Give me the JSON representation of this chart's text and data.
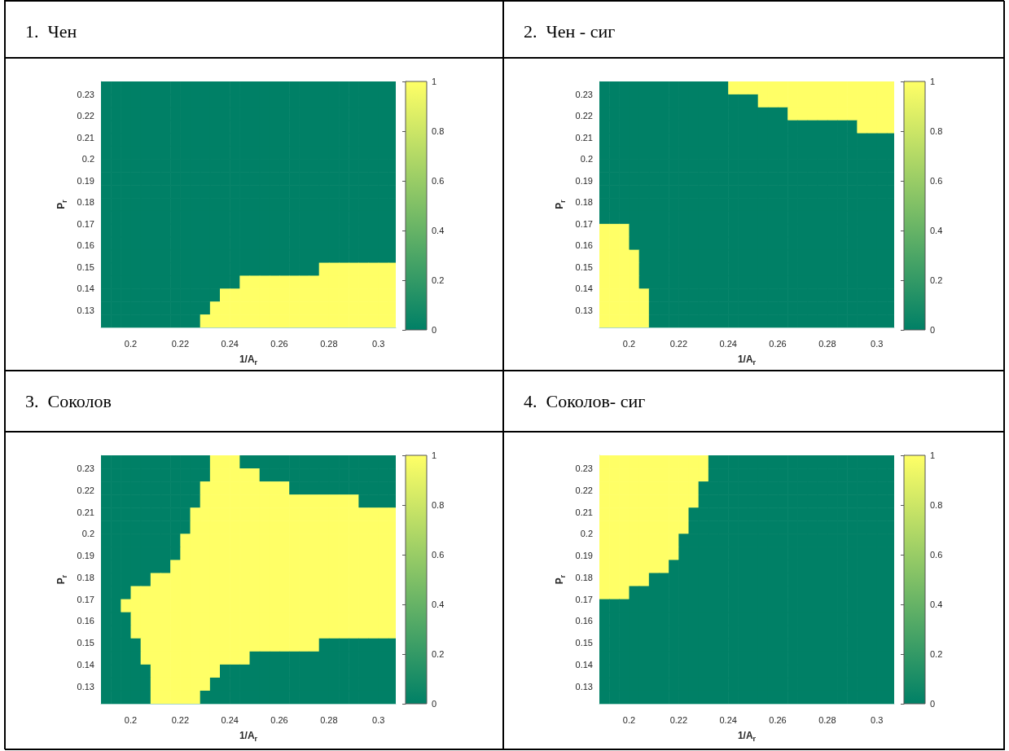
{
  "chart_data": [
    {
      "type": "heatmap",
      "title": "1.  Чен",
      "xlabel": "1/A$_{r}$",
      "ylabel": "P$_{r}$",
      "x": [
        0.19,
        0.194,
        0.198,
        0.202,
        0.206,
        0.21,
        0.214,
        0.218,
        0.222,
        0.226,
        0.23,
        0.234,
        0.238,
        0.242,
        0.246,
        0.25,
        0.254,
        0.258,
        0.262,
        0.266,
        0.27,
        0.274,
        0.278,
        0.282,
        0.286,
        0.29,
        0.294,
        0.298,
        0.302,
        0.306
      ],
      "y": [
        0.233,
        0.227,
        0.221,
        0.215,
        0.209,
        0.203,
        0.197,
        0.191,
        0.185,
        0.179,
        0.173,
        0.167,
        0.161,
        0.155,
        0.149,
        0.143,
        0.137,
        0.131,
        0.125
      ],
      "xlim": [
        0.188,
        0.307
      ],
      "ylim": [
        0.122,
        0.236
      ],
      "xticks": [
        0.2,
        0.22,
        0.24,
        0.26,
        0.28,
        0.3
      ],
      "yticks": [
        0.13,
        0.14,
        0.15,
        0.16,
        0.17,
        0.18,
        0.19,
        0.2,
        0.21,
        0.22,
        0.23
      ],
      "clim": [
        0,
        1
      ],
      "cticks": [
        0,
        0.2,
        0.4,
        0.6,
        0.8,
        1
      ],
      "cells": [
        [
          0,
          0,
          0,
          0,
          0,
          0,
          0,
          0,
          0,
          0,
          0,
          0,
          0,
          0,
          0,
          0,
          0,
          0,
          0,
          0,
          0,
          0,
          0,
          0,
          0,
          0,
          0,
          0,
          0,
          0
        ],
        [
          0,
          0,
          0,
          0,
          0,
          0,
          0,
          0,
          0,
          0,
          0,
          0,
          0,
          0,
          0,
          0,
          0,
          0,
          0,
          0,
          0,
          0,
          0,
          0,
          0,
          0,
          0,
          0,
          0,
          0
        ],
        [
          0,
          0,
          0,
          0,
          0,
          0,
          0,
          0,
          0,
          0,
          0,
          0,
          0,
          0,
          0,
          0,
          0,
          0,
          0,
          0,
          0,
          0,
          0,
          0,
          0,
          0,
          0,
          0,
          0,
          0
        ],
        [
          0,
          0,
          0,
          0,
          0,
          0,
          0,
          0,
          0,
          0,
          0,
          0,
          0,
          0,
          0,
          0,
          0,
          0,
          0,
          0,
          0,
          0,
          0,
          0,
          0,
          0,
          0,
          0,
          0,
          0
        ],
        [
          0,
          0,
          0,
          0,
          0,
          0,
          0,
          0,
          0,
          0,
          0,
          0,
          0,
          0,
          0,
          0,
          0,
          0,
          0,
          0,
          0,
          0,
          0,
          0,
          0,
          0,
          0,
          0,
          0,
          0
        ],
        [
          0,
          0,
          0,
          0,
          0,
          0,
          0,
          0,
          0,
          0,
          0,
          0,
          0,
          0,
          0,
          0,
          0,
          0,
          0,
          0,
          0,
          0,
          0,
          0,
          0,
          0,
          0,
          0,
          0,
          0
        ],
        [
          0,
          0,
          0,
          0,
          0,
          0,
          0,
          0,
          0,
          0,
          0,
          0,
          0,
          0,
          0,
          0,
          0,
          0,
          0,
          0,
          0,
          0,
          0,
          0,
          0,
          0,
          0,
          0,
          0,
          0
        ],
        [
          0,
          0,
          0,
          0,
          0,
          0,
          0,
          0,
          0,
          0,
          0,
          0,
          0,
          0,
          0,
          0,
          0,
          0,
          0,
          0,
          0,
          0,
          0,
          0,
          0,
          0,
          0,
          0,
          0,
          0
        ],
        [
          0,
          0,
          0,
          0,
          0,
          0,
          0,
          0,
          0,
          0,
          0,
          0,
          0,
          0,
          0,
          0,
          0,
          0,
          0,
          0,
          0,
          0,
          0,
          0,
          0,
          0,
          0,
          0,
          0,
          0
        ],
        [
          0,
          0,
          0,
          0,
          0,
          0,
          0,
          0,
          0,
          0,
          0,
          0,
          0,
          0,
          0,
          0,
          0,
          0,
          0,
          0,
          0,
          0,
          0,
          0,
          0,
          0,
          0,
          0,
          0,
          0
        ],
        [
          0,
          0,
          0,
          0,
          0,
          0,
          0,
          0,
          0,
          0,
          0,
          0,
          0,
          0,
          0,
          0,
          0,
          0,
          0,
          0,
          0,
          0,
          0,
          0,
          0,
          0,
          0,
          0,
          0,
          0
        ],
        [
          0,
          0,
          0,
          0,
          0,
          0,
          0,
          0,
          0,
          0,
          0,
          0,
          0,
          0,
          0,
          0,
          0,
          0,
          0,
          0,
          0,
          0,
          0,
          0,
          0,
          0,
          0,
          0,
          0,
          0
        ],
        [
          0,
          0,
          0,
          0,
          0,
          0,
          0,
          0,
          0,
          0,
          0,
          0,
          0,
          0,
          0,
          0,
          0,
          0,
          0,
          0,
          0,
          0,
          0,
          0,
          0,
          0,
          0,
          0,
          0,
          0
        ],
        [
          0,
          0,
          0,
          0,
          0,
          0,
          0,
          0,
          0,
          0,
          0,
          0,
          0,
          0,
          0,
          0,
          0,
          0,
          0,
          0,
          0,
          0,
          0,
          0,
          0,
          0,
          0,
          0,
          0,
          0
        ],
        [
          0,
          0,
          0,
          0,
          0,
          0,
          0,
          0,
          0,
          0,
          0,
          0,
          0,
          0,
          0,
          0,
          0,
          0,
          0,
          0,
          0,
          0,
          1,
          1,
          1,
          1,
          1,
          1,
          1,
          1
        ],
        [
          0,
          0,
          0,
          0,
          0,
          0,
          0,
          0,
          0,
          0,
          0,
          0,
          0,
          0,
          1,
          1,
          1,
          1,
          1,
          1,
          1,
          1,
          1,
          1,
          1,
          1,
          1,
          1,
          1,
          1
        ],
        [
          0,
          0,
          0,
          0,
          0,
          0,
          0,
          0,
          0,
          0,
          0,
          0,
          1,
          1,
          1,
          1,
          1,
          1,
          1,
          1,
          1,
          1,
          1,
          1,
          1,
          1,
          1,
          1,
          1,
          1
        ],
        [
          0,
          0,
          0,
          0,
          0,
          0,
          0,
          0,
          0,
          0,
          0,
          1,
          1,
          1,
          1,
          1,
          1,
          1,
          1,
          1,
          1,
          1,
          1,
          1,
          1,
          1,
          1,
          1,
          1,
          1
        ],
        [
          0,
          0,
          0,
          0,
          0,
          0,
          0,
          0,
          0,
          0,
          1,
          1,
          1,
          1,
          1,
          1,
          1,
          1,
          1,
          1,
          1,
          1,
          1,
          1,
          1,
          1,
          1,
          1,
          1,
          1
        ]
      ]
    },
    {
      "type": "heatmap",
      "title": "2.  Чен - сиг",
      "xlabel": "1/A$_{r}$",
      "ylabel": "P$_{r}$",
      "x": [
        0.19,
        0.194,
        0.198,
        0.202,
        0.206,
        0.21,
        0.214,
        0.218,
        0.222,
        0.226,
        0.23,
        0.234,
        0.238,
        0.242,
        0.246,
        0.25,
        0.254,
        0.258,
        0.262,
        0.266,
        0.27,
        0.274,
        0.278,
        0.282,
        0.286,
        0.29,
        0.294,
        0.298,
        0.302,
        0.306
      ],
      "y": [
        0.233,
        0.227,
        0.221,
        0.215,
        0.209,
        0.203,
        0.197,
        0.191,
        0.185,
        0.179,
        0.173,
        0.167,
        0.161,
        0.155,
        0.149,
        0.143,
        0.137,
        0.131,
        0.125
      ],
      "xlim": [
        0.188,
        0.307
      ],
      "ylim": [
        0.122,
        0.236
      ],
      "xticks": [
        0.2,
        0.22,
        0.24,
        0.26,
        0.28,
        0.3
      ],
      "yticks": [
        0.13,
        0.14,
        0.15,
        0.16,
        0.17,
        0.18,
        0.19,
        0.2,
        0.21,
        0.22,
        0.23
      ],
      "clim": [
        0,
        1
      ],
      "cticks": [
        0,
        0.2,
        0.4,
        0.6,
        0.8,
        1
      ],
      "cells": [
        [
          0,
          0,
          0,
          0,
          0,
          0,
          0,
          0,
          0,
          0,
          0,
          0,
          0,
          1,
          1,
          1,
          1,
          1,
          1,
          1,
          1,
          1,
          1,
          1,
          1,
          1,
          1,
          1,
          1,
          1
        ],
        [
          0,
          0,
          0,
          0,
          0,
          0,
          0,
          0,
          0,
          0,
          0,
          0,
          0,
          0,
          0,
          0,
          1,
          1,
          1,
          1,
          1,
          1,
          1,
          1,
          1,
          1,
          1,
          1,
          1,
          1
        ],
        [
          0,
          0,
          0,
          0,
          0,
          0,
          0,
          0,
          0,
          0,
          0,
          0,
          0,
          0,
          0,
          0,
          0,
          0,
          0,
          1,
          1,
          1,
          1,
          1,
          1,
          1,
          1,
          1,
          1,
          1
        ],
        [
          0,
          0,
          0,
          0,
          0,
          0,
          0,
          0,
          0,
          0,
          0,
          0,
          0,
          0,
          0,
          0,
          0,
          0,
          0,
          0,
          0,
          0,
          0,
          0,
          0,
          0,
          1,
          1,
          1,
          1
        ],
        [
          0,
          0,
          0,
          0,
          0,
          0,
          0,
          0,
          0,
          0,
          0,
          0,
          0,
          0,
          0,
          0,
          0,
          0,
          0,
          0,
          0,
          0,
          0,
          0,
          0,
          0,
          0,
          0,
          0,
          0
        ],
        [
          0,
          0,
          0,
          0,
          0,
          0,
          0,
          0,
          0,
          0,
          0,
          0,
          0,
          0,
          0,
          0,
          0,
          0,
          0,
          0,
          0,
          0,
          0,
          0,
          0,
          0,
          0,
          0,
          0,
          0
        ],
        [
          0,
          0,
          0,
          0,
          0,
          0,
          0,
          0,
          0,
          0,
          0,
          0,
          0,
          0,
          0,
          0,
          0,
          0,
          0,
          0,
          0,
          0,
          0,
          0,
          0,
          0,
          0,
          0,
          0,
          0
        ],
        [
          0,
          0,
          0,
          0,
          0,
          0,
          0,
          0,
          0,
          0,
          0,
          0,
          0,
          0,
          0,
          0,
          0,
          0,
          0,
          0,
          0,
          0,
          0,
          0,
          0,
          0,
          0,
          0,
          0,
          0
        ],
        [
          0,
          0,
          0,
          0,
          0,
          0,
          0,
          0,
          0,
          0,
          0,
          0,
          0,
          0,
          0,
          0,
          0,
          0,
          0,
          0,
          0,
          0,
          0,
          0,
          0,
          0,
          0,
          0,
          0,
          0
        ],
        [
          0,
          0,
          0,
          0,
          0,
          0,
          0,
          0,
          0,
          0,
          0,
          0,
          0,
          0,
          0,
          0,
          0,
          0,
          0,
          0,
          0,
          0,
          0,
          0,
          0,
          0,
          0,
          0,
          0,
          0
        ],
        [
          0,
          0,
          0,
          0,
          0,
          0,
          0,
          0,
          0,
          0,
          0,
          0,
          0,
          0,
          0,
          0,
          0,
          0,
          0,
          0,
          0,
          0,
          0,
          0,
          0,
          0,
          0,
          0,
          0,
          0
        ],
        [
          1,
          1,
          1,
          0,
          0,
          0,
          0,
          0,
          0,
          0,
          0,
          0,
          0,
          0,
          0,
          0,
          0,
          0,
          0,
          0,
          0,
          0,
          0,
          0,
          0,
          0,
          0,
          0,
          0,
          0
        ],
        [
          1,
          1,
          1,
          0,
          0,
          0,
          0,
          0,
          0,
          0,
          0,
          0,
          0,
          0,
          0,
          0,
          0,
          0,
          0,
          0,
          0,
          0,
          0,
          0,
          0,
          0,
          0,
          0,
          0,
          0
        ],
        [
          1,
          1,
          1,
          1,
          0,
          0,
          0,
          0,
          0,
          0,
          0,
          0,
          0,
          0,
          0,
          0,
          0,
          0,
          0,
          0,
          0,
          0,
          0,
          0,
          0,
          0,
          0,
          0,
          0,
          0
        ],
        [
          1,
          1,
          1,
          1,
          0,
          0,
          0,
          0,
          0,
          0,
          0,
          0,
          0,
          0,
          0,
          0,
          0,
          0,
          0,
          0,
          0,
          0,
          0,
          0,
          0,
          0,
          0,
          0,
          0,
          0
        ],
        [
          1,
          1,
          1,
          1,
          0,
          0,
          0,
          0,
          0,
          0,
          0,
          0,
          0,
          0,
          0,
          0,
          0,
          0,
          0,
          0,
          0,
          0,
          0,
          0,
          0,
          0,
          0,
          0,
          0,
          0
        ],
        [
          1,
          1,
          1,
          1,
          1,
          0,
          0,
          0,
          0,
          0,
          0,
          0,
          0,
          0,
          0,
          0,
          0,
          0,
          0,
          0,
          0,
          0,
          0,
          0,
          0,
          0,
          0,
          0,
          0,
          0
        ],
        [
          1,
          1,
          1,
          1,
          1,
          0,
          0,
          0,
          0,
          0,
          0,
          0,
          0,
          0,
          0,
          0,
          0,
          0,
          0,
          0,
          0,
          0,
          0,
          0,
          0,
          0,
          0,
          0,
          0,
          0
        ],
        [
          1,
          1,
          1,
          1,
          1,
          0,
          0,
          0,
          0,
          0,
          0,
          0,
          0,
          0,
          0,
          0,
          0,
          0,
          0,
          0,
          0,
          0,
          0,
          0,
          0,
          0,
          0,
          0,
          0,
          0
        ]
      ]
    },
    {
      "type": "heatmap",
      "title": "3.  Соколов",
      "xlabel": "1/A$_{r}$",
      "ylabel": "P$_{r}$",
      "x": [
        0.19,
        0.194,
        0.198,
        0.202,
        0.206,
        0.21,
        0.214,
        0.218,
        0.222,
        0.226,
        0.23,
        0.234,
        0.238,
        0.242,
        0.246,
        0.25,
        0.254,
        0.258,
        0.262,
        0.266,
        0.27,
        0.274,
        0.278,
        0.282,
        0.286,
        0.29,
        0.294,
        0.298,
        0.302,
        0.306
      ],
      "y": [
        0.233,
        0.227,
        0.221,
        0.215,
        0.209,
        0.203,
        0.197,
        0.191,
        0.185,
        0.179,
        0.173,
        0.167,
        0.161,
        0.155,
        0.149,
        0.143,
        0.137,
        0.131,
        0.125
      ],
      "xlim": [
        0.188,
        0.307
      ],
      "ylim": [
        0.122,
        0.236
      ],
      "xticks": [
        0.2,
        0.22,
        0.24,
        0.26,
        0.28,
        0.3
      ],
      "yticks": [
        0.13,
        0.14,
        0.15,
        0.16,
        0.17,
        0.18,
        0.19,
        0.2,
        0.21,
        0.22,
        0.23
      ],
      "clim": [
        0,
        1
      ],
      "cticks": [
        0,
        0.2,
        0.4,
        0.6,
        0.8,
        1
      ],
      "cells": [
        [
          0,
          0,
          0,
          0,
          0,
          0,
          0,
          0,
          0,
          0,
          0,
          1,
          1,
          1,
          0,
          0,
          0,
          0,
          0,
          0,
          0,
          0,
          0,
          0,
          0,
          0,
          0,
          0,
          0,
          0
        ],
        [
          0,
          0,
          0,
          0,
          0,
          0,
          0,
          0,
          0,
          0,
          0,
          1,
          1,
          1,
          1,
          1,
          0,
          0,
          0,
          0,
          0,
          0,
          0,
          0,
          0,
          0,
          0,
          0,
          0,
          0
        ],
        [
          0,
          0,
          0,
          0,
          0,
          0,
          0,
          0,
          0,
          0,
          1,
          1,
          1,
          1,
          1,
          1,
          1,
          1,
          1,
          0,
          0,
          0,
          0,
          0,
          0,
          0,
          0,
          0,
          0,
          0
        ],
        [
          0,
          0,
          0,
          0,
          0,
          0,
          0,
          0,
          0,
          0,
          1,
          1,
          1,
          1,
          1,
          1,
          1,
          1,
          1,
          1,
          1,
          1,
          1,
          1,
          1,
          1,
          0,
          0,
          0,
          0
        ],
        [
          0,
          0,
          0,
          0,
          0,
          0,
          0,
          0,
          0,
          1,
          1,
          1,
          1,
          1,
          1,
          1,
          1,
          1,
          1,
          1,
          1,
          1,
          1,
          1,
          1,
          1,
          1,
          1,
          1,
          1
        ],
        [
          0,
          0,
          0,
          0,
          0,
          0,
          0,
          0,
          0,
          1,
          1,
          1,
          1,
          1,
          1,
          1,
          1,
          1,
          1,
          1,
          1,
          1,
          1,
          1,
          1,
          1,
          1,
          1,
          1,
          1
        ],
        [
          0,
          0,
          0,
          0,
          0,
          0,
          0,
          0,
          1,
          1,
          1,
          1,
          1,
          1,
          1,
          1,
          1,
          1,
          1,
          1,
          1,
          1,
          1,
          1,
          1,
          1,
          1,
          1,
          1,
          1
        ],
        [
          0,
          0,
          0,
          0,
          0,
          0,
          0,
          0,
          1,
          1,
          1,
          1,
          1,
          1,
          1,
          1,
          1,
          1,
          1,
          1,
          1,
          1,
          1,
          1,
          1,
          1,
          1,
          1,
          1,
          1
        ],
        [
          0,
          0,
          0,
          0,
          0,
          0,
          0,
          1,
          1,
          1,
          1,
          1,
          1,
          1,
          1,
          1,
          1,
          1,
          1,
          1,
          1,
          1,
          1,
          1,
          1,
          1,
          1,
          1,
          1,
          1
        ],
        [
          0,
          0,
          0,
          0,
          0,
          1,
          1,
          1,
          1,
          1,
          1,
          1,
          1,
          1,
          1,
          1,
          1,
          1,
          1,
          1,
          1,
          1,
          1,
          1,
          1,
          1,
          1,
          1,
          1,
          1
        ],
        [
          0,
          0,
          0,
          1,
          1,
          1,
          1,
          1,
          1,
          1,
          1,
          1,
          1,
          1,
          1,
          1,
          1,
          1,
          1,
          1,
          1,
          1,
          1,
          1,
          1,
          1,
          1,
          1,
          1,
          1
        ],
        [
          0,
          0,
          1,
          1,
          1,
          1,
          1,
          1,
          1,
          1,
          1,
          1,
          1,
          1,
          1,
          1,
          1,
          1,
          1,
          1,
          1,
          1,
          1,
          1,
          1,
          1,
          1,
          1,
          1,
          1
        ],
        [
          0,
          0,
          0,
          1,
          1,
          1,
          1,
          1,
          1,
          1,
          1,
          1,
          1,
          1,
          1,
          1,
          1,
          1,
          1,
          1,
          1,
          1,
          1,
          1,
          1,
          1,
          1,
          1,
          1,
          1
        ],
        [
          0,
          0,
          0,
          1,
          1,
          1,
          1,
          1,
          1,
          1,
          1,
          1,
          1,
          1,
          1,
          1,
          1,
          1,
          1,
          1,
          1,
          1,
          1,
          1,
          1,
          1,
          1,
          1,
          1,
          1
        ],
        [
          0,
          0,
          0,
          0,
          1,
          1,
          1,
          1,
          1,
          1,
          1,
          1,
          1,
          1,
          1,
          1,
          1,
          1,
          1,
          1,
          1,
          1,
          0,
          0,
          0,
          0,
          0,
          0,
          0,
          0
        ],
        [
          0,
          0,
          0,
          0,
          1,
          1,
          1,
          1,
          1,
          1,
          1,
          1,
          1,
          1,
          1,
          0,
          0,
          0,
          0,
          0,
          0,
          0,
          0,
          0,
          0,
          0,
          0,
          0,
          0,
          0
        ],
        [
          0,
          0,
          0,
          0,
          0,
          1,
          1,
          1,
          1,
          1,
          1,
          1,
          0,
          0,
          0,
          0,
          0,
          0,
          0,
          0,
          0,
          0,
          0,
          0,
          0,
          0,
          0,
          0,
          0,
          0
        ],
        [
          0,
          0,
          0,
          0,
          0,
          1,
          1,
          1,
          1,
          1,
          1,
          0,
          0,
          0,
          0,
          0,
          0,
          0,
          0,
          0,
          0,
          0,
          0,
          0,
          0,
          0,
          0,
          0,
          0,
          0
        ],
        [
          0,
          0,
          0,
          0,
          0,
          1,
          1,
          1,
          1,
          1,
          0,
          0,
          0,
          0,
          0,
          0,
          0,
          0,
          0,
          0,
          0,
          0,
          0,
          0,
          0,
          0,
          0,
          0,
          0,
          0
        ]
      ]
    },
    {
      "type": "heatmap",
      "title": "4.  Соколов- сиг",
      "xlabel": "1/A$_{r}$",
      "ylabel": "P$_{r}$",
      "x": [
        0.19,
        0.194,
        0.198,
        0.202,
        0.206,
        0.21,
        0.214,
        0.218,
        0.222,
        0.226,
        0.23,
        0.234,
        0.238,
        0.242,
        0.246,
        0.25,
        0.254,
        0.258,
        0.262,
        0.266,
        0.27,
        0.274,
        0.278,
        0.282,
        0.286,
        0.29,
        0.294,
        0.298,
        0.302,
        0.306
      ],
      "y": [
        0.233,
        0.227,
        0.221,
        0.215,
        0.209,
        0.203,
        0.197,
        0.191,
        0.185,
        0.179,
        0.173,
        0.167,
        0.161,
        0.155,
        0.149,
        0.143,
        0.137,
        0.131,
        0.125
      ],
      "xlim": [
        0.188,
        0.307
      ],
      "ylim": [
        0.122,
        0.236
      ],
      "xticks": [
        0.2,
        0.22,
        0.24,
        0.26,
        0.28,
        0.3
      ],
      "yticks": [
        0.13,
        0.14,
        0.15,
        0.16,
        0.17,
        0.18,
        0.19,
        0.2,
        0.21,
        0.22,
        0.23
      ],
      "clim": [
        0,
        1
      ],
      "cticks": [
        0,
        0.2,
        0.4,
        0.6,
        0.8,
        1
      ],
      "cells": [
        [
          1,
          1,
          1,
          1,
          1,
          1,
          1,
          1,
          1,
          1,
          1,
          0,
          0,
          0,
          0,
          0,
          0,
          0,
          0,
          0,
          0,
          0,
          0,
          0,
          0,
          0,
          0,
          0,
          0,
          0
        ],
        [
          1,
          1,
          1,
          1,
          1,
          1,
          1,
          1,
          1,
          1,
          1,
          0,
          0,
          0,
          0,
          0,
          0,
          0,
          0,
          0,
          0,
          0,
          0,
          0,
          0,
          0,
          0,
          0,
          0,
          0
        ],
        [
          1,
          1,
          1,
          1,
          1,
          1,
          1,
          1,
          1,
          1,
          0,
          0,
          0,
          0,
          0,
          0,
          0,
          0,
          0,
          0,
          0,
          0,
          0,
          0,
          0,
          0,
          0,
          0,
          0,
          0
        ],
        [
          1,
          1,
          1,
          1,
          1,
          1,
          1,
          1,
          1,
          1,
          0,
          0,
          0,
          0,
          0,
          0,
          0,
          0,
          0,
          0,
          0,
          0,
          0,
          0,
          0,
          0,
          0,
          0,
          0,
          0
        ],
        [
          1,
          1,
          1,
          1,
          1,
          1,
          1,
          1,
          1,
          0,
          0,
          0,
          0,
          0,
          0,
          0,
          0,
          0,
          0,
          0,
          0,
          0,
          0,
          0,
          0,
          0,
          0,
          0,
          0,
          0
        ],
        [
          1,
          1,
          1,
          1,
          1,
          1,
          1,
          1,
          1,
          0,
          0,
          0,
          0,
          0,
          0,
          0,
          0,
          0,
          0,
          0,
          0,
          0,
          0,
          0,
          0,
          0,
          0,
          0,
          0,
          0
        ],
        [
          1,
          1,
          1,
          1,
          1,
          1,
          1,
          1,
          0,
          0,
          0,
          0,
          0,
          0,
          0,
          0,
          0,
          0,
          0,
          0,
          0,
          0,
          0,
          0,
          0,
          0,
          0,
          0,
          0,
          0
        ],
        [
          1,
          1,
          1,
          1,
          1,
          1,
          1,
          1,
          0,
          0,
          0,
          0,
          0,
          0,
          0,
          0,
          0,
          0,
          0,
          0,
          0,
          0,
          0,
          0,
          0,
          0,
          0,
          0,
          0,
          0
        ],
        [
          1,
          1,
          1,
          1,
          1,
          1,
          1,
          0,
          0,
          0,
          0,
          0,
          0,
          0,
          0,
          0,
          0,
          0,
          0,
          0,
          0,
          0,
          0,
          0,
          0,
          0,
          0,
          0,
          0,
          0
        ],
        [
          1,
          1,
          1,
          1,
          1,
          0,
          0,
          0,
          0,
          0,
          0,
          0,
          0,
          0,
          0,
          0,
          0,
          0,
          0,
          0,
          0,
          0,
          0,
          0,
          0,
          0,
          0,
          0,
          0,
          0
        ],
        [
          1,
          1,
          1,
          0,
          0,
          0,
          0,
          0,
          0,
          0,
          0,
          0,
          0,
          0,
          0,
          0,
          0,
          0,
          0,
          0,
          0,
          0,
          0,
          0,
          0,
          0,
          0,
          0,
          0,
          0
        ],
        [
          0,
          0,
          0,
          0,
          0,
          0,
          0,
          0,
          0,
          0,
          0,
          0,
          0,
          0,
          0,
          0,
          0,
          0,
          0,
          0,
          0,
          0,
          0,
          0,
          0,
          0,
          0,
          0,
          0,
          0
        ],
        [
          0,
          0,
          0,
          0,
          0,
          0,
          0,
          0,
          0,
          0,
          0,
          0,
          0,
          0,
          0,
          0,
          0,
          0,
          0,
          0,
          0,
          0,
          0,
          0,
          0,
          0,
          0,
          0,
          0,
          0
        ],
        [
          0,
          0,
          0,
          0,
          0,
          0,
          0,
          0,
          0,
          0,
          0,
          0,
          0,
          0,
          0,
          0,
          0,
          0,
          0,
          0,
          0,
          0,
          0,
          0,
          0,
          0,
          0,
          0,
          0,
          0
        ],
        [
          0,
          0,
          0,
          0,
          0,
          0,
          0,
          0,
          0,
          0,
          0,
          0,
          0,
          0,
          0,
          0,
          0,
          0,
          0,
          0,
          0,
          0,
          0,
          0,
          0,
          0,
          0,
          0,
          0,
          0
        ],
        [
          0,
          0,
          0,
          0,
          0,
          0,
          0,
          0,
          0,
          0,
          0,
          0,
          0,
          0,
          0,
          0,
          0,
          0,
          0,
          0,
          0,
          0,
          0,
          0,
          0,
          0,
          0,
          0,
          0,
          0
        ],
        [
          0,
          0,
          0,
          0,
          0,
          0,
          0,
          0,
          0,
          0,
          0,
          0,
          0,
          0,
          0,
          0,
          0,
          0,
          0,
          0,
          0,
          0,
          0,
          0,
          0,
          0,
          0,
          0,
          0,
          0
        ],
        [
          0,
          0,
          0,
          0,
          0,
          0,
          0,
          0,
          0,
          0,
          0,
          0,
          0,
          0,
          0,
          0,
          0,
          0,
          0,
          0,
          0,
          0,
          0,
          0,
          0,
          0,
          0,
          0,
          0,
          0
        ],
        [
          0,
          0,
          0,
          0,
          0,
          0,
          0,
          0,
          0,
          0,
          0,
          0,
          0,
          0,
          0,
          0,
          0,
          0,
          0,
          0,
          0,
          0,
          0,
          0,
          0,
          0,
          0,
          0,
          0,
          0
        ]
      ]
    }
  ]
}
